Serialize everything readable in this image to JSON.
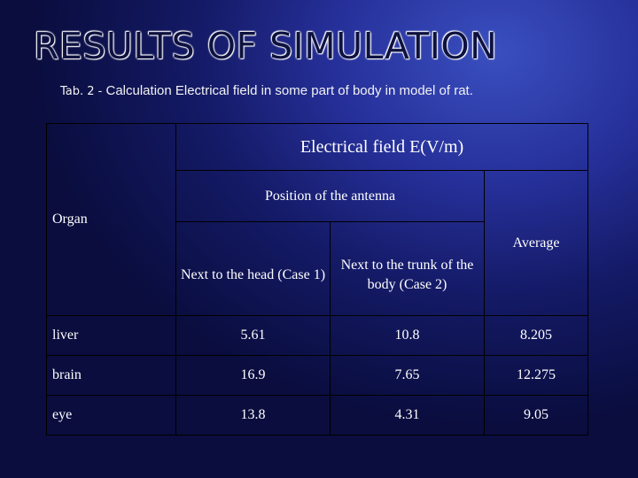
{
  "slide": {
    "title": "RESULTS OF SIMULATION",
    "caption_number": "Tab. 2 - ",
    "caption_text": "Calculation Electrical field in some part of body in model of rat."
  },
  "table": {
    "organ_header": "Organ",
    "field_header": "Electrical field E(V/m)",
    "position_header": "Position of the antenna",
    "col_head": "Next to the head (Case 1)",
    "col_trunk": "Next to the trunk of the body (Case 2)",
    "col_average": "Average",
    "rows": [
      {
        "organ": "liver",
        "head": "5.61",
        "trunk": "10.8",
        "average": "8.205"
      },
      {
        "organ": "brain",
        "head": "16.9",
        "trunk": "7.65",
        "average": "12.275"
      },
      {
        "organ": "eye",
        "head": "13.8",
        "trunk": "4.31",
        "average": "9.05"
      }
    ]
  },
  "colors": {
    "background_center": "#3a4fbf",
    "background_edge": "#0a0d3e",
    "table_border": "#000000",
    "text": "#ffffff"
  }
}
